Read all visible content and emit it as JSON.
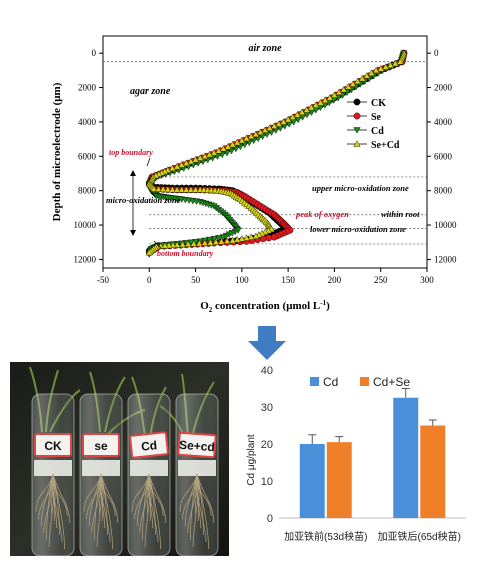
{
  "chart_data": [
    {
      "type": "line",
      "xlabel": "O",
      "xlabel_sub": "2",
      "xlabel_rest": " concentration (μmol L",
      "xlabel_sup": "-1",
      "xlabel_end": ")",
      "ylabel": "Depth of microelectrode (μm)",
      "xlim": [
        -50,
        300
      ],
      "ylim": [
        12500,
        -1000
      ],
      "xticks": [
        "-50",
        "0",
        "50",
        "100",
        "150",
        "200",
        "250",
        "300"
      ],
      "yticks": [
        "0",
        "2000",
        "4000",
        "6000",
        "8000",
        "10000",
        "12000"
      ],
      "legend": [
        "CK",
        "Se",
        "Cd",
        "Se+Cd"
      ],
      "legend_position": "right",
      "annotations": {
        "air_zone": "air zone",
        "agar_zone": "agar zone",
        "top_boundary": "top boundary",
        "micro_oxidation_zone": "micro-oxidation zone",
        "upper_zone": "upper micro-oxidation zone",
        "peak_of_oxygen": "peak of oxygen",
        "within_root": "within root",
        "lower_zone": "lower micro-oxidation zone",
        "bottom_boundary": "bottom boundary"
      },
      "boundary_lines": [
        500,
        7200,
        9400,
        10200,
        11100
      ],
      "series": [
        {
          "name": "CK",
          "color": "#000000",
          "marker": "circle",
          "points": [
            [
              275,
              0
            ],
            [
              273,
              500
            ],
            [
              250,
              1000
            ],
            [
              225,
              1800
            ],
            [
              200,
              2600
            ],
            [
              175,
              3300
            ],
            [
              150,
              4000
            ],
            [
              125,
              4600
            ],
            [
              100,
              5200
            ],
            [
              75,
              5800
            ],
            [
              50,
              6300
            ],
            [
              25,
              6800
            ],
            [
              5,
              7200
            ],
            [
              0,
              7600
            ],
            [
              5,
              7800
            ],
            [
              25,
              7850
            ],
            [
              50,
              7850
            ],
            [
              75,
              7900
            ],
            [
              90,
              8000
            ],
            [
              100,
              8300
            ],
            [
              115,
              8800
            ],
            [
              130,
              9300
            ],
            [
              140,
              9800
            ],
            [
              148,
              10200
            ],
            [
              130,
              10600
            ],
            [
              100,
              10900
            ],
            [
              70,
              11000
            ],
            [
              40,
              11100
            ],
            [
              10,
              11200
            ],
            [
              0,
              11500
            ]
          ]
        },
        {
          "name": "Se",
          "color": "#e0191e",
          "marker": "circle",
          "points": [
            [
              275,
              0
            ],
            [
              273,
              500
            ],
            [
              248,
              1000
            ],
            [
              222,
              1800
            ],
            [
              197,
              2600
            ],
            [
              172,
              3300
            ],
            [
              147,
              4000
            ],
            [
              122,
              4600
            ],
            [
              97,
              5200
            ],
            [
              72,
              5800
            ],
            [
              47,
              6300
            ],
            [
              22,
              6800
            ],
            [
              3,
              7200
            ],
            [
              0,
              7600
            ],
            [
              5,
              7900
            ],
            [
              30,
              7950
            ],
            [
              55,
              7950
            ],
            [
              80,
              8000
            ],
            [
              95,
              8100
            ],
            [
              105,
              8400
            ],
            [
              120,
              8900
            ],
            [
              135,
              9400
            ],
            [
              145,
              9900
            ],
            [
              152,
              10300
            ],
            [
              135,
              10700
            ],
            [
              105,
              10950
            ],
            [
              70,
              11050
            ],
            [
              40,
              11150
            ],
            [
              10,
              11250
            ],
            [
              0,
              11600
            ]
          ]
        },
        {
          "name": "Cd",
          "color": "#1e8c1e",
          "marker": "triangle-down",
          "points": [
            [
              275,
              0
            ],
            [
              272,
              500
            ],
            [
              252,
              1000
            ],
            [
              228,
              1800
            ],
            [
              204,
              2600
            ],
            [
              180,
              3300
            ],
            [
              156,
              4000
            ],
            [
              132,
              4600
            ],
            [
              108,
              5200
            ],
            [
              84,
              5800
            ],
            [
              58,
              6300
            ],
            [
              32,
              6800
            ],
            [
              8,
              7200
            ],
            [
              0,
              7600
            ],
            [
              2,
              8000
            ],
            [
              8,
              8300
            ],
            [
              20,
              8400
            ],
            [
              35,
              8500
            ],
            [
              55,
              8650
            ],
            [
              70,
              8900
            ],
            [
              82,
              9400
            ],
            [
              90,
              9900
            ],
            [
              96,
              10300
            ],
            [
              80,
              10700
            ],
            [
              55,
              10950
            ],
            [
              30,
              11100
            ],
            [
              10,
              11200
            ],
            [
              2,
              11400
            ],
            [
              0,
              11700
            ]
          ]
        },
        {
          "name": "Se+Cd",
          "color": "#d4d414",
          "marker": "triangle-up",
          "points": [
            [
              275,
              0
            ],
            [
              271,
              500
            ],
            [
              245,
              1000
            ],
            [
              220,
              1800
            ],
            [
              195,
              2600
            ],
            [
              170,
              3300
            ],
            [
              145,
              4000
            ],
            [
              120,
              4600
            ],
            [
              95,
              5200
            ],
            [
              70,
              5800
            ],
            [
              45,
              6300
            ],
            [
              20,
              6800
            ],
            [
              4,
              7200
            ],
            [
              0,
              7600
            ],
            [
              5,
              7900
            ],
            [
              30,
              7950
            ],
            [
              55,
              7950
            ],
            [
              75,
              8000
            ],
            [
              88,
              8150
            ],
            [
              98,
              8500
            ],
            [
              110,
              9000
            ],
            [
              120,
              9500
            ],
            [
              128,
              9900
            ],
            [
              132,
              10250
            ],
            [
              115,
              10650
            ],
            [
              90,
              10900
            ],
            [
              60,
              11050
            ],
            [
              30,
              11150
            ],
            [
              8,
              11250
            ],
            [
              0,
              11600
            ]
          ]
        }
      ]
    },
    {
      "type": "bar",
      "ylabel": "Cd  μg/plant",
      "categories": [
        "加亚铁前(53d秧苗)",
        "加亚铁后(65d秧苗)"
      ],
      "ylim": [
        0,
        40
      ],
      "yticks": [
        "0",
        "10",
        "20",
        "30",
        "40"
      ],
      "legend_position": "top",
      "series": [
        {
          "name": "Cd",
          "color": "#4a90d9",
          "values": [
            20.0,
            32.5
          ],
          "errors": [
            2.5,
            2.5
          ]
        },
        {
          "name": "Cd+Se",
          "color": "#f07f2a",
          "values": [
            20.5,
            25.0
          ],
          "errors": [
            1.5,
            1.5
          ]
        }
      ]
    }
  ],
  "photo": {
    "tube_labels": [
      "CK",
      "se",
      "Cd",
      "Se+cd"
    ]
  },
  "arrow_color": "#3f7cc4"
}
